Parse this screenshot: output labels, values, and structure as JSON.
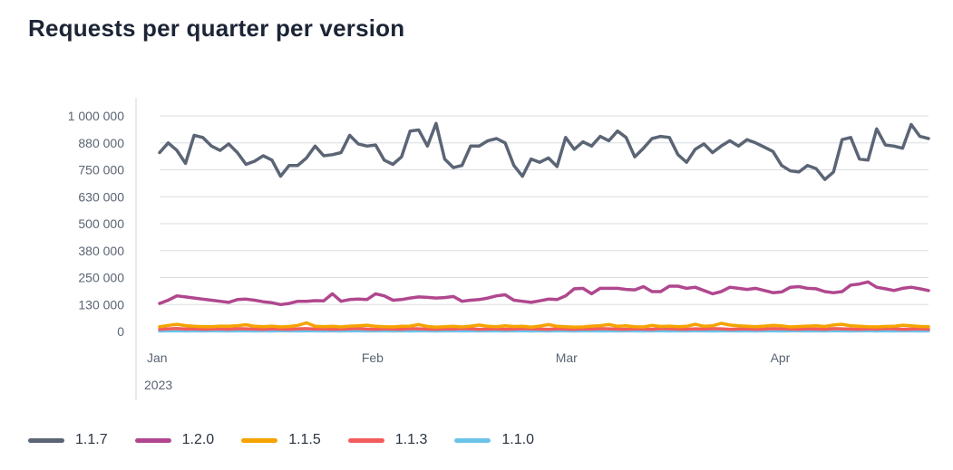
{
  "title": "Requests per quarter per version",
  "chart_data": {
    "type": "line",
    "title": "Requests per quarter per version",
    "xlabel": "",
    "ylabel": "",
    "ylim": [
      0,
      1000000
    ],
    "y_ticks": [
      "0",
      "130 000",
      "250 000",
      "380 000",
      "500 000",
      "630 000",
      "750 000",
      "880 000",
      "1 000 000"
    ],
    "y_tick_values": [
      0,
      125000,
      250000,
      375000,
      500000,
      625000,
      750000,
      875000,
      1000000
    ],
    "x_ticks": [
      {
        "label": "Jan",
        "day": 0
      },
      {
        "label": "Feb",
        "day": 31
      },
      {
        "label": "Mar",
        "day": 59
      },
      {
        "label": "Apr",
        "day": 90
      }
    ],
    "x_year_label": "2023",
    "x_range_days": [
      0,
      111
    ],
    "series": [
      {
        "name": "1.1.7",
        "color": "#5b6575",
        "values": [
          830000,
          875000,
          840000,
          780000,
          910000,
          900000,
          860000,
          840000,
          870000,
          830000,
          775000,
          790000,
          815000,
          795000,
          720000,
          770000,
          770000,
          805000,
          860000,
          815000,
          820000,
          830000,
          910000,
          870000,
          860000,
          865000,
          795000,
          775000,
          810000,
          930000,
          935000,
          860000,
          965000,
          800000,
          760000,
          770000,
          860000,
          860000,
          885000,
          895000,
          875000,
          770000,
          720000,
          800000,
          785000,
          805000,
          765000,
          900000,
          845000,
          880000,
          860000,
          905000,
          885000,
          930000,
          900000,
          810000,
          850000,
          895000,
          905000,
          900000,
          820000,
          785000,
          845000,
          870000,
          830000,
          860000,
          885000,
          860000,
          890000,
          875000,
          855000,
          835000,
          770000,
          745000,
          740000,
          770000,
          755000,
          705000,
          740000,
          890000,
          900000,
          800000,
          795000,
          940000,
          865000,
          860000,
          850000,
          960000,
          905000,
          895000
        ]
      },
      {
        "name": "1.2.0",
        "color": "#b0478e",
        "values": [
          130000,
          145000,
          165000,
          160000,
          155000,
          150000,
          145000,
          140000,
          135000,
          148000,
          150000,
          145000,
          138000,
          133000,
          125000,
          130000,
          140000,
          140000,
          143000,
          142000,
          175000,
          140000,
          148000,
          150000,
          148000,
          175000,
          165000,
          145000,
          148000,
          155000,
          160000,
          158000,
          155000,
          157000,
          162000,
          140000,
          145000,
          148000,
          155000,
          165000,
          170000,
          145000,
          140000,
          135000,
          142000,
          150000,
          148000,
          165000,
          198000,
          200000,
          175000,
          200000,
          200000,
          200000,
          195000,
          193000,
          208000,
          185000,
          185000,
          210000,
          210000,
          200000,
          205000,
          190000,
          175000,
          185000,
          205000,
          200000,
          195000,
          200000,
          190000,
          180000,
          183000,
          205000,
          208000,
          200000,
          198000,
          185000,
          180000,
          185000,
          215000,
          220000,
          230000,
          205000,
          198000,
          190000,
          200000,
          205000,
          198000,
          190000
        ]
      },
      {
        "name": "1.1.5",
        "color": "#f5a300",
        "values": [
          22000,
          28000,
          33000,
          27000,
          24000,
          22000,
          22000,
          25000,
          24000,
          27000,
          31000,
          24000,
          22000,
          25000,
          21000,
          23000,
          28000,
          40000,
          24000,
          22000,
          24000,
          21000,
          25000,
          26000,
          29000,
          24000,
          22000,
          21000,
          24000,
          25000,
          32000,
          23000,
          20000,
          22000,
          24000,
          21000,
          25000,
          30000,
          24000,
          22000,
          26000,
          23000,
          24000,
          20000,
          25000,
          32000,
          24000,
          22000,
          20000,
          21000,
          25000,
          27000,
          32000,
          24000,
          26000,
          22000,
          21000,
          28000,
          23000,
          25000,
          22000,
          24000,
          33000,
          24000,
          26000,
          38000,
          30000,
          26000,
          24000,
          22000,
          25000,
          28000,
          26000,
          21000,
          23000,
          25000,
          26000,
          23000,
          30000,
          33000,
          26000,
          24000,
          22000,
          21000,
          23000,
          24000,
          29000,
          26000,
          23000,
          22000
        ]
      },
      {
        "name": "1.1.3",
        "color": "#f25c5c",
        "values": [
          10000,
          12000,
          14000,
          11000,
          12000,
          10000,
          11000,
          12000,
          10000,
          13000,
          12000,
          11000,
          10000,
          12000,
          11000,
          10000,
          12000,
          13000,
          11000,
          12000,
          10000,
          11000,
          12000,
          14000,
          11000,
          10000,
          12000,
          11000,
          10000,
          13000,
          12000,
          11000,
          10000,
          12000,
          11000,
          13000,
          12000,
          10000,
          11000,
          12000,
          10000,
          11000,
          13000,
          12000,
          11000,
          10000,
          12000,
          11000,
          10000,
          12000,
          11000,
          13000,
          12000,
          11000,
          10000,
          12000,
          11000,
          10000,
          13000,
          12000,
          11000,
          10000,
          12000,
          11000,
          13000,
          12000,
          10000,
          11000,
          12000,
          10000,
          11000,
          13000,
          12000,
          11000,
          10000,
          12000,
          11000,
          10000,
          13000,
          12000,
          11000,
          10000,
          12000,
          11000,
          13000,
          12000,
          10000,
          11000,
          12000,
          10000
        ]
      },
      {
        "name": "1.1.0",
        "color": "#6cc3ea",
        "values": [
          2000,
          2500,
          3000,
          2000,
          2500,
          2000,
          3000,
          2500,
          2000,
          2500,
          3000,
          2000,
          2500,
          2000,
          3000,
          2500,
          2000,
          2500,
          3000,
          2000,
          2500,
          2000,
          3000,
          2500,
          2000,
          2500,
          3000,
          2000,
          2500,
          2000,
          3000,
          2500,
          2000,
          2500,
          3000,
          2000,
          2500,
          2000,
          3000,
          2500,
          2000,
          2500,
          3000,
          2000,
          2500,
          2000,
          3000,
          2500,
          2000,
          2500,
          3000,
          2000,
          2500,
          2000,
          3000,
          2500,
          2000,
          2500,
          3000,
          2000,
          2500,
          2000,
          3000,
          2500,
          2000,
          2500,
          3000,
          2000,
          2500,
          2000,
          3000,
          2500,
          2000,
          2500,
          3000,
          2000,
          2500,
          2000,
          3000,
          2500,
          2000,
          2500,
          3000,
          2000,
          2500,
          2000,
          3000,
          2500,
          2000,
          2500
        ]
      }
    ],
    "legend_position": "bottom-left"
  }
}
